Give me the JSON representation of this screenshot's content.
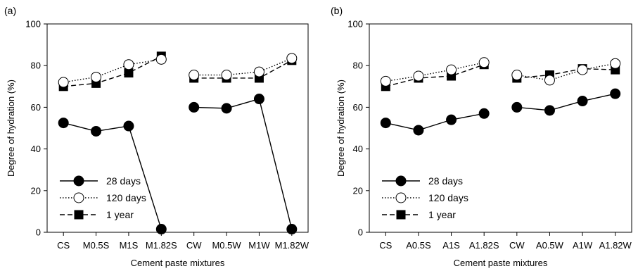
{
  "chart_data": [
    {
      "type": "line",
      "panel_label": "(a)",
      "xlabel": "Cement paste mixtures",
      "ylabel": "Degree of hydration (%)",
      "ylim": [
        0,
        100
      ],
      "yticks": [
        "0",
        "20",
        "40",
        "60",
        "80",
        "100"
      ],
      "categories": [
        "CS",
        "M0.5S",
        "M1S",
        "M1.82S",
        "CW",
        "M0.5W",
        "M1W",
        "M1.82W"
      ],
      "groups": [
        [
          0,
          1,
          2,
          3
        ],
        [
          4,
          5,
          6,
          7
        ]
      ],
      "legend_position": "bottom-left",
      "grid": false,
      "series": [
        {
          "name": "28 days",
          "marker": "filled-circle",
          "line": "solid",
          "values": [
            52.5,
            48.5,
            51,
            1.5,
            60,
            59.5,
            64,
            1.5
          ]
        },
        {
          "name": "120 days",
          "marker": "open-circle",
          "line": "dotted",
          "values": [
            72,
            74.5,
            80.5,
            83,
            75.5,
            75.5,
            77,
            83.5
          ]
        },
        {
          "name": "1 year",
          "marker": "filled-square",
          "line": "dashed",
          "values": [
            70,
            71.5,
            76.5,
            84.5,
            74,
            74,
            74,
            82.5
          ]
        }
      ]
    },
    {
      "type": "line",
      "panel_label": "(b)",
      "xlabel": "Cement paste mixtures",
      "ylabel": "Degree of hydration (%)",
      "ylim": [
        0,
        100
      ],
      "yticks": [
        "0",
        "20",
        "40",
        "60",
        "80",
        "100"
      ],
      "categories": [
        "CS",
        "A0.5S",
        "A1S",
        "A1.82S",
        "CW",
        "A0.5W",
        "A1W",
        "A1.82W"
      ],
      "groups": [
        [
          0,
          1,
          2,
          3
        ],
        [
          4,
          5,
          6,
          7
        ]
      ],
      "legend_position": "bottom-left",
      "grid": false,
      "series": [
        {
          "name": "28 days",
          "marker": "filled-circle",
          "line": "solid",
          "values": [
            52.5,
            49,
            54,
            57,
            60,
            58.5,
            63,
            66.5
          ]
        },
        {
          "name": "120 days",
          "marker": "open-circle",
          "line": "dotted",
          "values": [
            72.5,
            75,
            78,
            81.5,
            75.5,
            73,
            78,
            81
          ]
        },
        {
          "name": "1 year",
          "marker": "filled-square",
          "line": "dashed",
          "values": [
            70,
            74,
            75,
            80.5,
            74,
            75.5,
            78.5,
            78
          ]
        }
      ]
    }
  ]
}
